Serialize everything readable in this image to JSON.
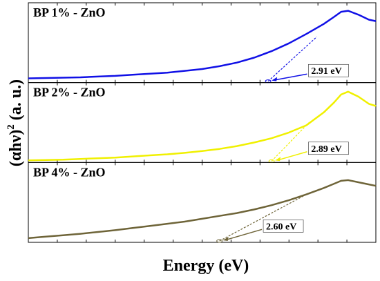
{
  "chart_data": {
    "type": "line",
    "xlabel": "Energy (eV)",
    "ylabel_main": "(αhν)",
    "ylabel_sup": "2",
    "ylabel_units": " (a. u.)",
    "panels": [
      {
        "title": "BP 1% - ZnO",
        "color": "#1010e6",
        "band_gap_label": "2.91 eV",
        "band_gap_ev": 2.91,
        "curve": [
          [
            0.0,
            0.04
          ],
          [
            0.05,
            0.045
          ],
          [
            0.1,
            0.05
          ],
          [
            0.15,
            0.055
          ],
          [
            0.2,
            0.065
          ],
          [
            0.25,
            0.075
          ],
          [
            0.3,
            0.09
          ],
          [
            0.35,
            0.105
          ],
          [
            0.4,
            0.12
          ],
          [
            0.45,
            0.145
          ],
          [
            0.5,
            0.17
          ],
          [
            0.55,
            0.21
          ],
          [
            0.6,
            0.26
          ],
          [
            0.65,
            0.33
          ],
          [
            0.7,
            0.42
          ],
          [
            0.75,
            0.53
          ],
          [
            0.8,
            0.66
          ],
          [
            0.85,
            0.8
          ],
          [
            0.88,
            0.9
          ],
          [
            0.9,
            0.97
          ],
          [
            0.92,
            0.985
          ],
          [
            0.95,
            0.93
          ],
          [
            0.98,
            0.86
          ],
          [
            1.0,
            0.84
          ]
        ],
        "tangent": [
          [
            0.69,
            0.0
          ],
          [
            0.83,
            0.62
          ]
        ],
        "label_at": [
          0.81,
          0.12
        ],
        "arrow_to": [
          0.7,
          0.01
        ]
      },
      {
        "title": "BP 2% - ZnO",
        "color": "#f0f000",
        "band_gap_label": "2.89 eV",
        "band_gap_ev": 2.89,
        "curve": [
          [
            0.0,
            0.01
          ],
          [
            0.05,
            0.015
          ],
          [
            0.1,
            0.02
          ],
          [
            0.15,
            0.03
          ],
          [
            0.2,
            0.04
          ],
          [
            0.25,
            0.05
          ],
          [
            0.3,
            0.065
          ],
          [
            0.35,
            0.08
          ],
          [
            0.4,
            0.095
          ],
          [
            0.45,
            0.115
          ],
          [
            0.5,
            0.14
          ],
          [
            0.55,
            0.17
          ],
          [
            0.6,
            0.21
          ],
          [
            0.65,
            0.26
          ],
          [
            0.7,
            0.32
          ],
          [
            0.75,
            0.4
          ],
          [
            0.8,
            0.5
          ],
          [
            0.85,
            0.68
          ],
          [
            0.88,
            0.82
          ],
          [
            0.9,
            0.93
          ],
          [
            0.92,
            0.97
          ],
          [
            0.95,
            0.9
          ],
          [
            0.98,
            0.8
          ],
          [
            1.0,
            0.77
          ]
        ],
        "tangent": [
          [
            0.7,
            0.0
          ],
          [
            0.81,
            0.55
          ]
        ],
        "label_at": [
          0.81,
          0.15
        ],
        "arrow_to": [
          0.71,
          0.01
        ]
      },
      {
        "title": "BP 4% - ZnO",
        "color": "#6e6438",
        "band_gap_label": "2.60 eV",
        "band_gap_ev": 2.6,
        "curve": [
          [
            0.0,
            0.04
          ],
          [
            0.05,
            0.06
          ],
          [
            0.1,
            0.08
          ],
          [
            0.15,
            0.1
          ],
          [
            0.2,
            0.125
          ],
          [
            0.25,
            0.15
          ],
          [
            0.3,
            0.18
          ],
          [
            0.35,
            0.21
          ],
          [
            0.4,
            0.24
          ],
          [
            0.45,
            0.27
          ],
          [
            0.5,
            0.31
          ],
          [
            0.55,
            0.35
          ],
          [
            0.6,
            0.39
          ],
          [
            0.65,
            0.44
          ],
          [
            0.7,
            0.5
          ],
          [
            0.75,
            0.57
          ],
          [
            0.8,
            0.65
          ],
          [
            0.85,
            0.74
          ],
          [
            0.88,
            0.8
          ],
          [
            0.9,
            0.84
          ],
          [
            0.92,
            0.85
          ],
          [
            0.95,
            0.82
          ],
          [
            0.98,
            0.79
          ],
          [
            1.0,
            0.77
          ]
        ],
        "tangent": [
          [
            0.55,
            0.0
          ],
          [
            0.8,
            0.65
          ]
        ],
        "label_at": [
          0.68,
          0.18
        ],
        "arrow_to": [
          0.56,
          0.01
        ]
      }
    ]
  }
}
